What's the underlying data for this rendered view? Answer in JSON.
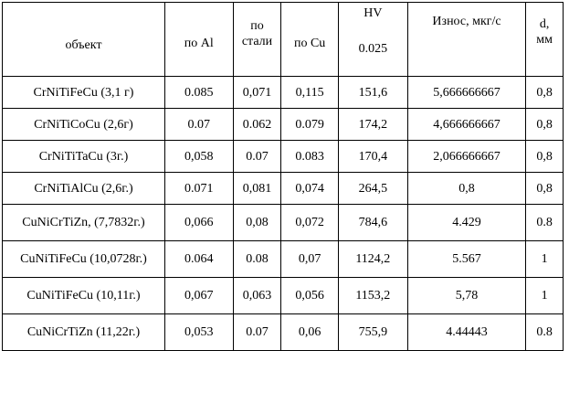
{
  "table": {
    "headers": {
      "object": "объект",
      "al": "по Al",
      "steel": "по стали",
      "cu": "по Cu",
      "hv_top": "HV",
      "hv_bottom": "0.025",
      "wear": "Износ, мкг/с",
      "d": "d, мм"
    },
    "rows": [
      {
        "object": "CrNiTiFeCu (3,1 г)",
        "al": "0.085",
        "steel": "0,071",
        "cu": "0,115",
        "hv": "151,6",
        "wear": "5,666666667",
        "d": "0,8"
      },
      {
        "object": "CrNiTiCoCu (2,6г)",
        "al": "0.07",
        "steel": "0.062",
        "cu": "0.079",
        "hv": "174,2",
        "wear": "4,666666667",
        "d": "0,8"
      },
      {
        "object": "CrNiTiTaCu (3г.)",
        "al": "0,058",
        "steel": "0.07",
        "cu": "0.083",
        "hv": "170,4",
        "wear": "2,066666667",
        "d": "0,8"
      },
      {
        "object": "CrNiTiAlCu (2,6г.)",
        "al": "0.071",
        "steel": "0,081",
        "cu": "0,074",
        "hv": "264,5",
        "wear": "0,8",
        "d": "0,8"
      },
      {
        "object": "CuNiCrTiZn, (7,7832г.)",
        "al": "0,066",
        "steel": "0,08",
        "cu": "0,072",
        "hv": "784,6",
        "wear": "4.429",
        "d": "0.8"
      },
      {
        "object": "CuNiTiFeCu (10,0728г.)",
        "al": "0.064",
        "steel": "0.08",
        "cu": "0,07",
        "hv": "1124,2",
        "wear": "5.567",
        "d": "1"
      },
      {
        "object": "CuNiTiFeCu (10,11г.)",
        "al": "0,067",
        "steel": "0,063",
        "cu": "0,056",
        "hv": "1153,2",
        "wear": "5,78",
        "d": "1"
      },
      {
        "object": "CuNiCrTiZn (11,22г.)",
        "al": "0,053",
        "steel": "0.07",
        "cu": "0,06",
        "hv": "755,9",
        "wear": "4.44443",
        "d": "0.8"
      }
    ]
  }
}
